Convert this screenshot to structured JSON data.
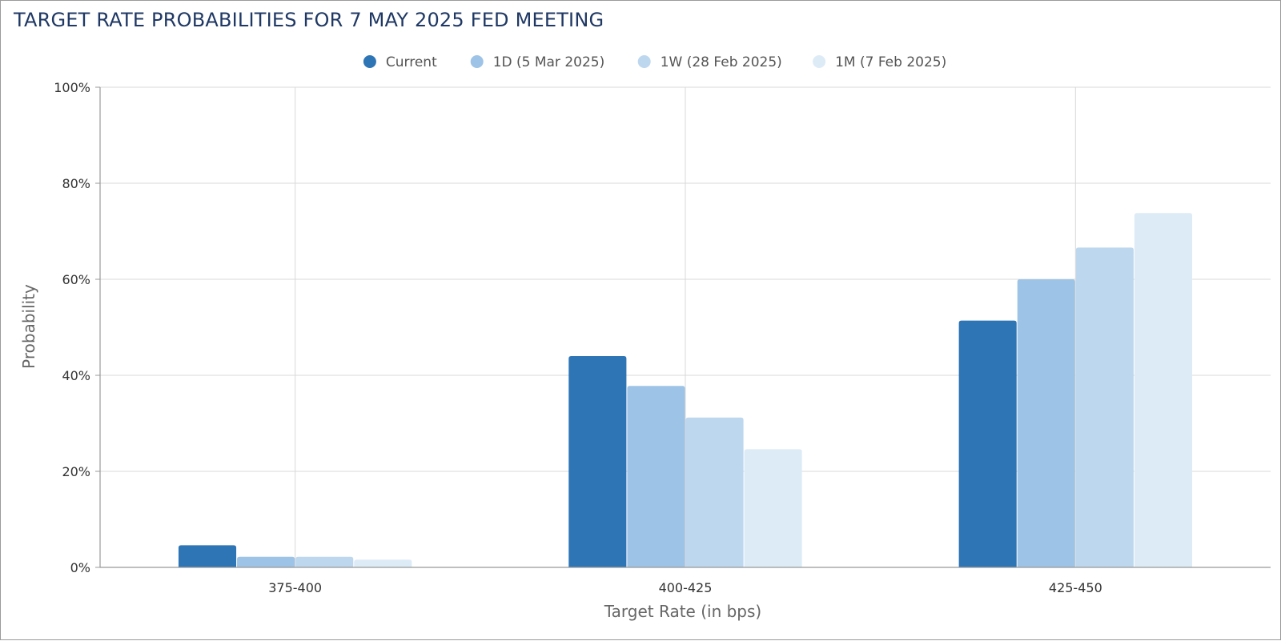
{
  "chart_data": {
    "type": "bar",
    "title": "TARGET RATE PROBABILITIES FOR 7 MAY 2025 FED MEETING",
    "xlabel": "Target Rate (in bps)",
    "ylabel": "Probability",
    "categories": [
      "375-400",
      "400-425",
      "425-450"
    ],
    "series": [
      {
        "name": "Current",
        "color": "#2e75b6",
        "values": [
          4.6,
          44.0,
          51.4
        ]
      },
      {
        "name": "1D (5 Mar 2025)",
        "color": "#9dc3e6",
        "values": [
          2.2,
          37.8,
          60.0
        ]
      },
      {
        "name": "1W (28 Feb 2025)",
        "color": "#bdd7ee",
        "values": [
          2.2,
          31.2,
          66.6
        ]
      },
      {
        "name": "1M (7 Feb 2025)",
        "color": "#ddebf7",
        "values": [
          1.6,
          24.6,
          73.8
        ]
      }
    ],
    "ylim": [
      0,
      100
    ],
    "yticks": [
      "0%",
      "20%",
      "40%",
      "60%",
      "80%",
      "100%"
    ],
    "grid": true,
    "legend_position": "top-center"
  }
}
